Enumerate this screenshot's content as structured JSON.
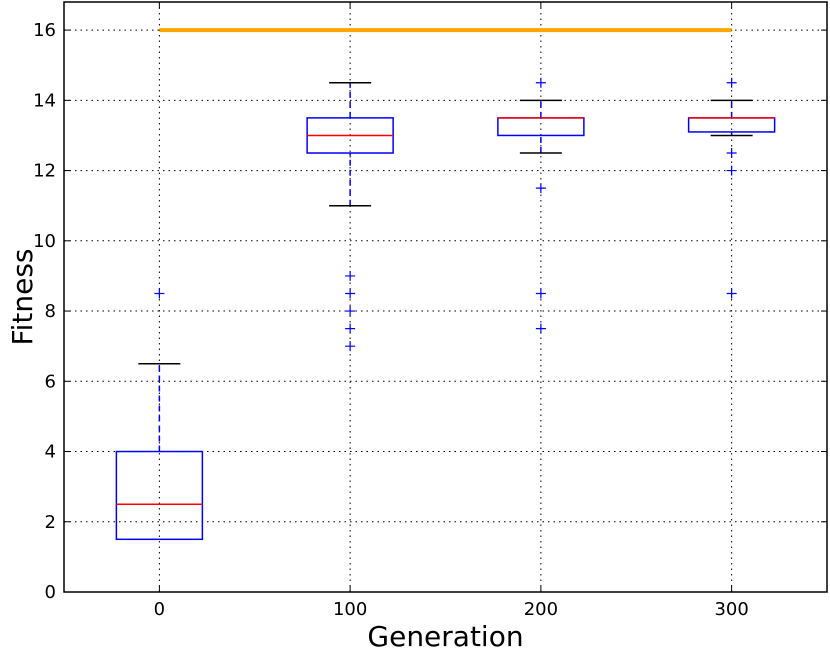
{
  "chart_data": {
    "type": "box",
    "title": "",
    "xlabel": "Generation",
    "ylabel": "Fitness",
    "categories": [
      "0",
      "100",
      "200",
      "300"
    ],
    "xticks": [
      0,
      100,
      200,
      300
    ],
    "xlim": [
      -50,
      350
    ],
    "ylim": [
      0,
      16.8
    ],
    "yticks": [
      0,
      2,
      4,
      6,
      8,
      10,
      12,
      14,
      16
    ],
    "grid": true,
    "reference_line": {
      "y": 16,
      "x_start": 0,
      "x_end": 300,
      "color": "#ffa500"
    },
    "boxes": [
      {
        "x": 0,
        "whisker_low": 1.5,
        "q1": 1.5,
        "median": 2.5,
        "q3": 4.0,
        "whisker_high": 6.5,
        "outliers": [
          8.5
        ]
      },
      {
        "x": 100,
        "whisker_low": 11.0,
        "q1": 12.5,
        "median": 13.0,
        "q3": 13.5,
        "whisker_high": 14.5,
        "outliers": [
          9.0,
          8.5,
          8.0,
          7.5,
          7.0
        ]
      },
      {
        "x": 200,
        "whisker_low": 12.5,
        "q1": 13.0,
        "median": 13.5,
        "q3": 13.5,
        "whisker_high": 14.0,
        "outliers": [
          14.5,
          11.5,
          8.5,
          7.5
        ]
      },
      {
        "x": 300,
        "whisker_low": 13.0,
        "q1": 13.1,
        "median": 13.5,
        "q3": 13.5,
        "whisker_high": 14.0,
        "outliers": [
          14.5,
          12.5,
          12.0,
          8.5
        ]
      }
    ],
    "colors": {
      "box": "#0000ff",
      "median": "#ff0000",
      "whisker_cap": "#000000",
      "outlier": "#0000ff"
    }
  }
}
